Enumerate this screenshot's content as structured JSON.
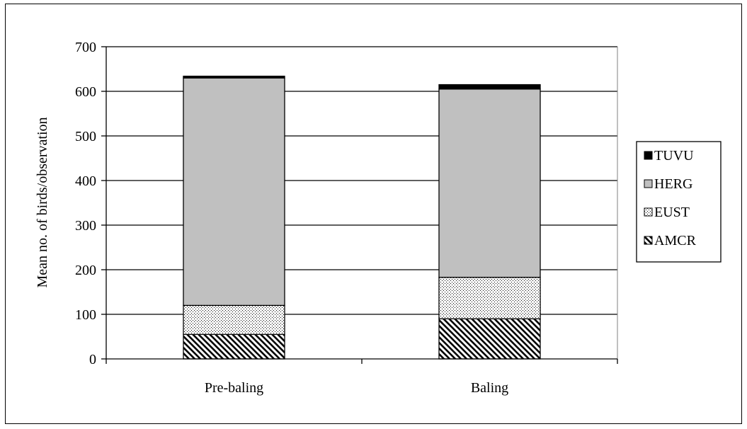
{
  "chart_data": {
    "type": "bar",
    "stacked": true,
    "categories": [
      "Pre-baling",
      "Baling"
    ],
    "series": [
      {
        "name": "AMCR",
        "values": [
          55,
          90
        ],
        "pattern": "diagonal-hatch"
      },
      {
        "name": "EUST",
        "values": [
          65,
          93
        ],
        "pattern": "dotted"
      },
      {
        "name": "HERG",
        "values": [
          510,
          422
        ],
        "pattern": "solid",
        "color": "#c0c0c0"
      },
      {
        "name": "TUVU",
        "values": [
          4,
          10
        ],
        "pattern": "solid",
        "color": "#000000"
      }
    ],
    "ylabel": "Mean no. of birds/observation",
    "xlabel": "",
    "ylim": [
      0,
      700
    ],
    "yticks": [
      0,
      100,
      200,
      300,
      400,
      500,
      600,
      700
    ],
    "grid": true,
    "legend": "right",
    "legend_order": [
      "TUVU",
      "HERG",
      "EUST",
      "AMCR"
    ]
  }
}
